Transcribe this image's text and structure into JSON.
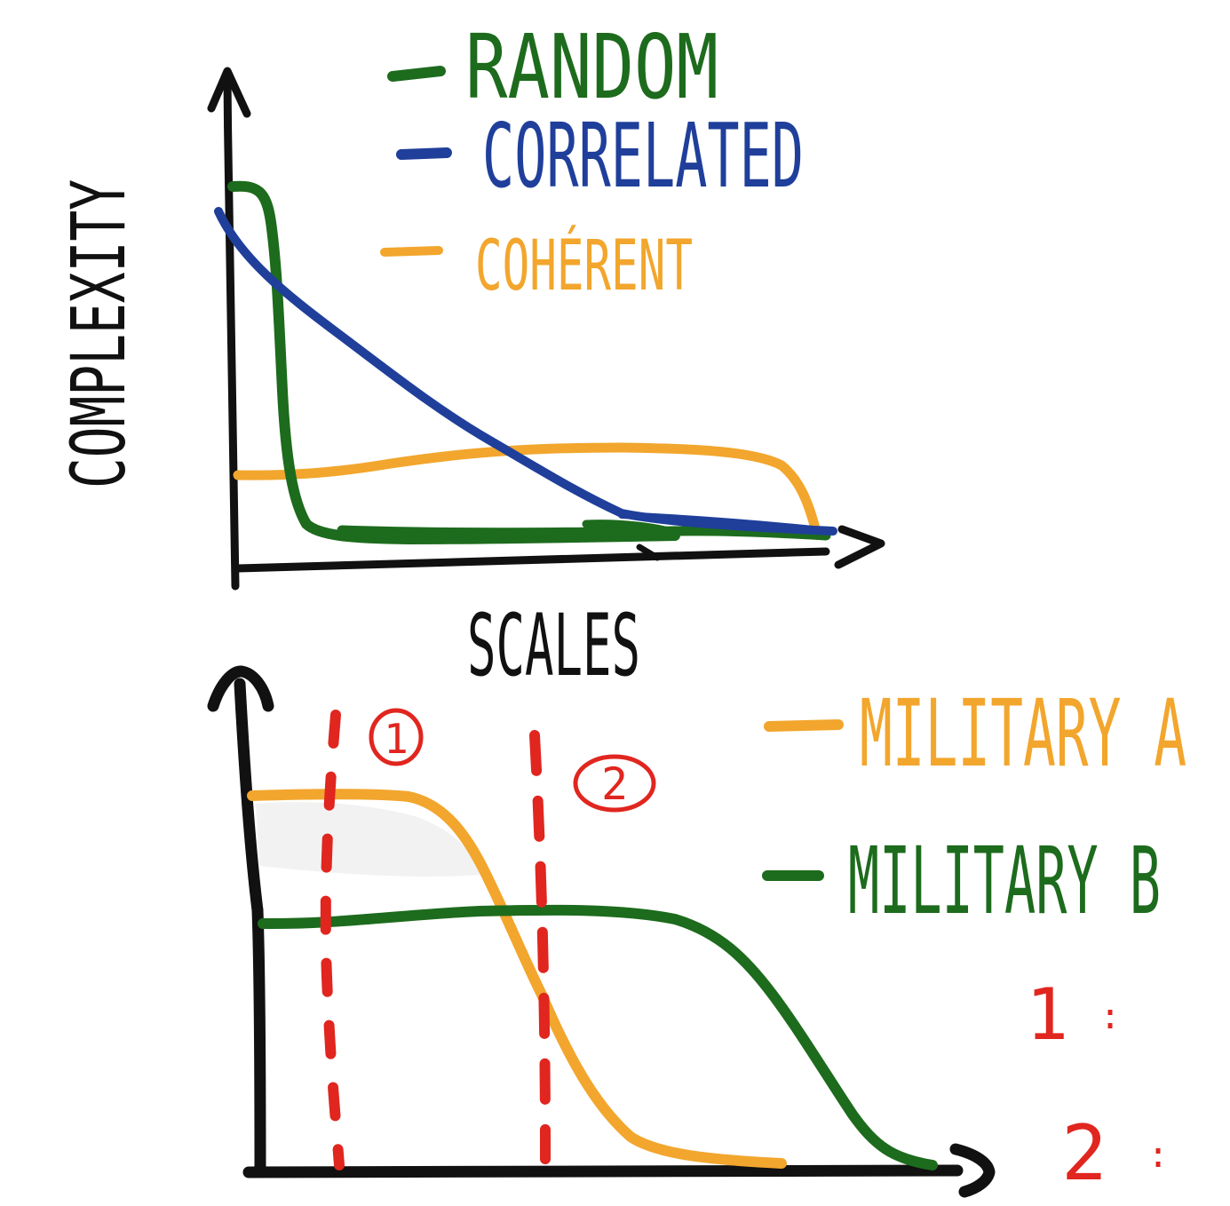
{
  "colors": {
    "axis": "#111111",
    "random": "#1d6b1d",
    "correlated": "#1f3f9a",
    "coherent": "#f2a62d",
    "military_a": "#f2a62d",
    "military_b": "#1d6b1d",
    "marker": "#e0261f"
  },
  "top_chart": {
    "ylabel": "COMPLEXITY",
    "xlabel": "SCALES",
    "legend": [
      {
        "key": "random",
        "label": "RANDOM"
      },
      {
        "key": "correlated",
        "label": "CORRELATED"
      },
      {
        "key": "coherent",
        "label": "COHÉRENT"
      }
    ]
  },
  "bottom_chart": {
    "legend": [
      {
        "key": "military_a",
        "label": "MILITARY A"
      },
      {
        "key": "military_b",
        "label": "MILITARY B"
      }
    ],
    "markers": [
      {
        "label": "1"
      },
      {
        "label": "2"
      }
    ],
    "notes": [
      {
        "label": "1",
        "suffix": ":"
      },
      {
        "label": "2",
        "suffix": ":"
      }
    ]
  }
}
